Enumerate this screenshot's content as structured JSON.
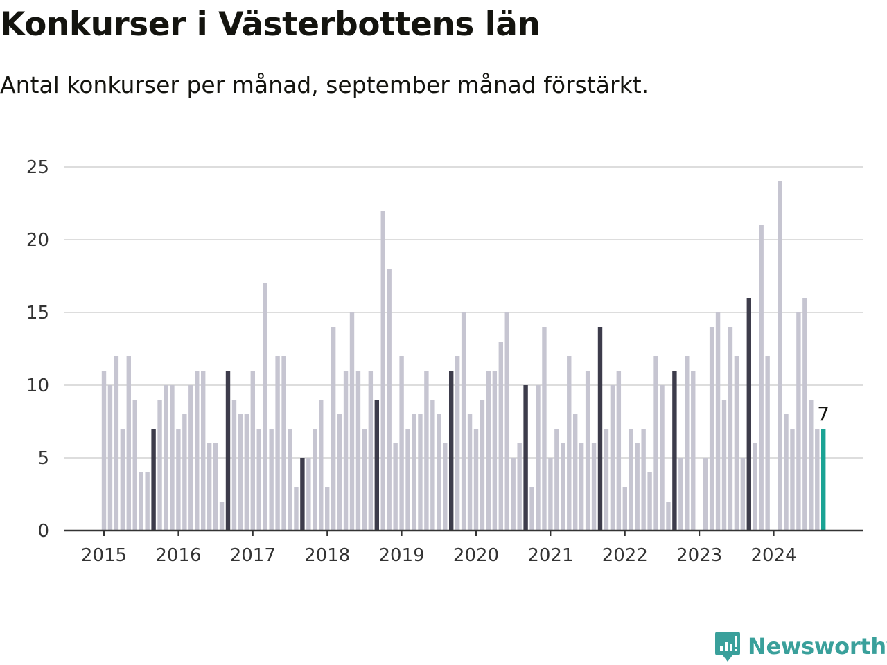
{
  "title": "Konkurser i Västerbottens län",
  "subtitle": "Antal konkurser per månad, september månad förstärkt.",
  "brand": {
    "name": "Newsworthy",
    "icon": "newsworthy-logo-icon"
  },
  "colors": {
    "bar": "#c6c5d1",
    "highlight": "#3d3c4b",
    "latest": "#1aa394",
    "grid": "#dddddd",
    "axis": "#333333",
    "text": "#333333"
  },
  "chart_data": {
    "type": "bar",
    "title": "Konkurser i Västerbottens län",
    "subtitle": "Antal konkurser per månad, september månad förstärkt.",
    "xlabel": "",
    "ylabel": "",
    "ylim": [
      0,
      25
    ],
    "yticks": [
      0,
      5,
      10,
      15,
      20,
      25
    ],
    "xtick_labels": [
      "2015",
      "2016",
      "2017",
      "2018",
      "2019",
      "2020",
      "2021",
      "2022",
      "2023",
      "2024"
    ],
    "grid": true,
    "start": "2015-01",
    "end": "2024-09",
    "highlight_month": "september",
    "last_value_label": "7",
    "categories": [
      "2015-01",
      "2015-02",
      "2015-03",
      "2015-04",
      "2015-05",
      "2015-06",
      "2015-07",
      "2015-08",
      "2015-09",
      "2015-10",
      "2015-11",
      "2015-12",
      "2016-01",
      "2016-02",
      "2016-03",
      "2016-04",
      "2016-05",
      "2016-06",
      "2016-07",
      "2016-08",
      "2016-09",
      "2016-10",
      "2016-11",
      "2016-12",
      "2017-01",
      "2017-02",
      "2017-03",
      "2017-04",
      "2017-05",
      "2017-06",
      "2017-07",
      "2017-08",
      "2017-09",
      "2017-10",
      "2017-11",
      "2017-12",
      "2018-01",
      "2018-02",
      "2018-03",
      "2018-04",
      "2018-05",
      "2018-06",
      "2018-07",
      "2018-08",
      "2018-09",
      "2018-10",
      "2018-11",
      "2018-12",
      "2019-01",
      "2019-02",
      "2019-03",
      "2019-04",
      "2019-05",
      "2019-06",
      "2019-07",
      "2019-08",
      "2019-09",
      "2019-10",
      "2019-11",
      "2019-12",
      "2020-01",
      "2020-02",
      "2020-03",
      "2020-04",
      "2020-05",
      "2020-06",
      "2020-07",
      "2020-08",
      "2020-09",
      "2020-10",
      "2020-11",
      "2020-12",
      "2021-01",
      "2021-02",
      "2021-03",
      "2021-04",
      "2021-05",
      "2021-06",
      "2021-07",
      "2021-08",
      "2021-09",
      "2021-10",
      "2021-11",
      "2021-12",
      "2022-01",
      "2022-02",
      "2022-03",
      "2022-04",
      "2022-05",
      "2022-06",
      "2022-07",
      "2022-08",
      "2022-09",
      "2022-10",
      "2022-11",
      "2022-12",
      "2023-01",
      "2023-02",
      "2023-03",
      "2023-04",
      "2023-05",
      "2023-06",
      "2023-07",
      "2023-08",
      "2023-09",
      "2023-10",
      "2023-11",
      "2023-12",
      "2024-01",
      "2024-02",
      "2024-03",
      "2024-04",
      "2024-05",
      "2024-06",
      "2024-07",
      "2024-08",
      "2024-09"
    ],
    "values": [
      11,
      10,
      12,
      7,
      12,
      9,
      4,
      4,
      7,
      9,
      10,
      10,
      7,
      8,
      10,
      11,
      11,
      6,
      6,
      2,
      11,
      9,
      8,
      8,
      11,
      7,
      17,
      7,
      12,
      12,
      7,
      3,
      5,
      5,
      7,
      9,
      3,
      14,
      8,
      11,
      15,
      11,
      7,
      11,
      9,
      22,
      18,
      6,
      12,
      7,
      8,
      8,
      11,
      9,
      8,
      6,
      11,
      12,
      15,
      8,
      7,
      9,
      11,
      11,
      13,
      15,
      5,
      6,
      10,
      3,
      10,
      14,
      5,
      7,
      6,
      12,
      8,
      6,
      11,
      6,
      14,
      7,
      10,
      11,
      3,
      7,
      6,
      7,
      4,
      12,
      10,
      2,
      11,
      5,
      12,
      11,
      0,
      5,
      14,
      15,
      9,
      14,
      12,
      5,
      16,
      6,
      21,
      12,
      0,
      24,
      8,
      7,
      15,
      16,
      9,
      7,
      7
    ]
  }
}
